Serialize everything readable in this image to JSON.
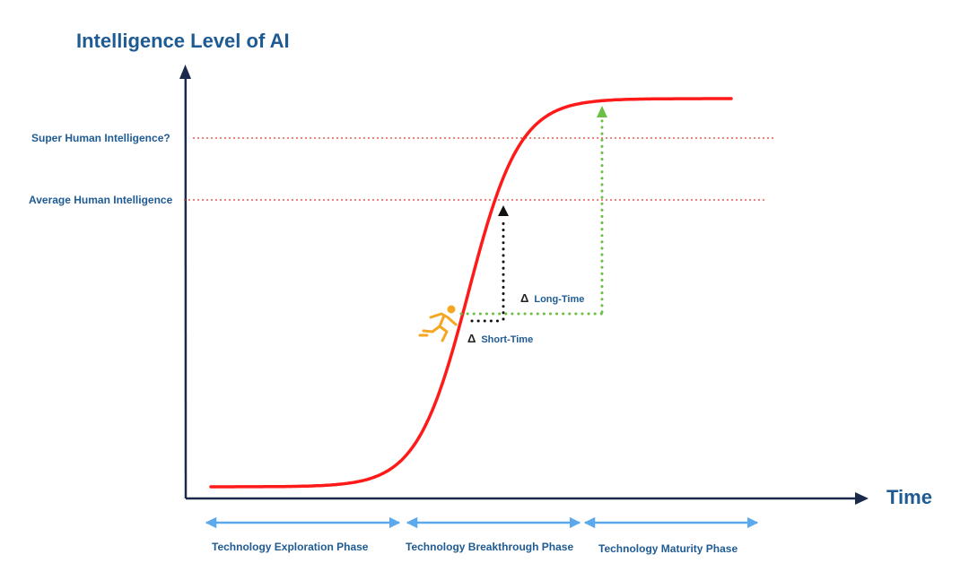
{
  "y_axis_title": "Intelligence Level of AI",
  "x_axis_title": "Time",
  "levels": {
    "super_human": "Super Human Intelligence?",
    "average_human": "Average Human Intelligence"
  },
  "deltas": {
    "long": {
      "symbol": "Δ",
      "text": "Long-Time"
    },
    "short": {
      "symbol": "Δ",
      "text": "Short-Time"
    }
  },
  "phases": [
    "Technology Exploration Phase",
    "Technology Breakthrough Phase",
    "Technology Maturity Phase"
  ],
  "colors": {
    "title": "#1f5b93",
    "axis": "#1b2a4a",
    "curve": "#ff1a1a",
    "reference_line": "#e53935",
    "phase_arrow": "#5aa9ec",
    "short_path": "#111111",
    "long_path": "#6abf45",
    "runner": "#f5a623"
  },
  "icons": {
    "runner": "running-person-icon"
  }
}
